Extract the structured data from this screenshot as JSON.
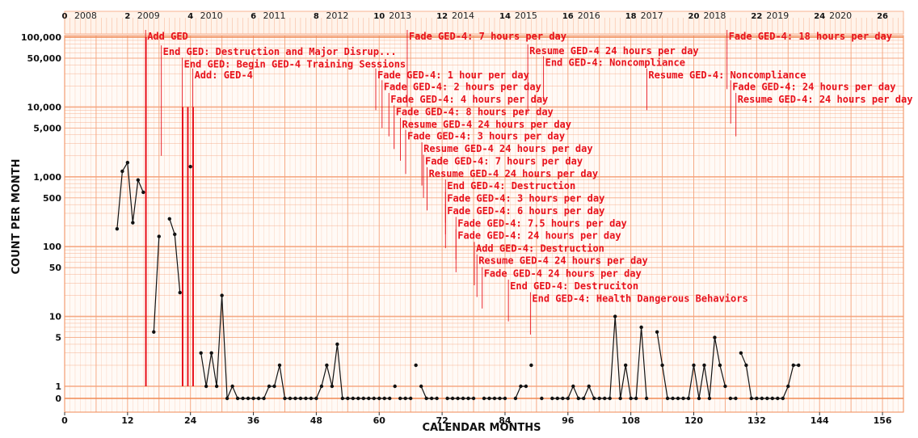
{
  "chart_data": {
    "type": "line",
    "title": "",
    "xlabel": "CALENDAR MONTHS",
    "ylabel": "COUNT PER MONTH",
    "xlim": [
      0,
      160
    ],
    "x_ticks": [
      0,
      12,
      24,
      36,
      48,
      60,
      72,
      84,
      96,
      108,
      120,
      132,
      144,
      156
    ],
    "y_scale": "log with zero baseline",
    "ylim": [
      0,
      100000
    ],
    "y_ticks": [
      {
        "value": 100000,
        "label": "100,000"
      },
      {
        "value": 50000,
        "label": "50,000"
      },
      {
        "value": 10000,
        "label": "10,000"
      },
      {
        "value": 5000,
        "label": "5,000"
      },
      {
        "value": 1000,
        "label": "1,000"
      },
      {
        "value": 500,
        "label": "500"
      },
      {
        "value": 100,
        "label": "100"
      },
      {
        "value": 50,
        "label": "50"
      },
      {
        "value": 10,
        "label": "10"
      },
      {
        "value": 5,
        "label": "5"
      },
      {
        "value": 1,
        "label": "1"
      },
      {
        "value": 0,
        "label": "0"
      }
    ],
    "top_ticks": [
      0,
      2,
      4,
      6,
      8,
      10,
      12,
      14,
      16,
      18,
      20,
      22,
      24,
      26
    ],
    "years": [
      "2008",
      "2009",
      "2010",
      "2011",
      "2012",
      "2013",
      "2014",
      "2015",
      "2016",
      "2017",
      "2018",
      "2019",
      "2020"
    ],
    "grid": true,
    "colors": {
      "grid": "#f5a27a",
      "annotation": "#e8121c",
      "series": "#111111",
      "major_grid": "#f08a55"
    },
    "segments": [
      [
        [
          10,
          180
        ],
        [
          11,
          1200
        ],
        [
          12,
          1600
        ],
        [
          13,
          220
        ],
        [
          14,
          900
        ],
        [
          15,
          600
        ]
      ],
      [
        [
          17,
          6
        ],
        [
          18,
          140
        ]
      ],
      [
        [
          20,
          250
        ],
        [
          21,
          150
        ],
        [
          22,
          22
        ]
      ],
      [
        [
          24,
          1400
        ]
      ],
      [
        [
          26,
          3
        ],
        [
          27,
          1
        ],
        [
          28,
          3
        ],
        [
          29,
          1
        ],
        [
          30,
          20
        ],
        [
          31,
          0
        ],
        [
          32,
          1
        ],
        [
          33,
          0
        ],
        [
          34,
          0
        ],
        [
          35,
          0
        ],
        [
          36,
          0
        ],
        [
          37,
          0
        ],
        [
          38,
          0
        ],
        [
          39,
          1
        ],
        [
          40,
          1
        ],
        [
          41,
          2
        ],
        [
          42,
          0
        ],
        [
          43,
          0
        ],
        [
          44,
          0
        ],
        [
          45,
          0
        ],
        [
          46,
          0
        ],
        [
          47,
          0
        ],
        [
          48,
          0
        ],
        [
          49,
          1
        ],
        [
          50,
          2
        ],
        [
          51,
          1
        ],
        [
          52,
          4
        ],
        [
          53,
          0
        ],
        [
          54,
          0
        ],
        [
          55,
          0
        ],
        [
          56,
          0
        ],
        [
          57,
          0
        ],
        [
          58,
          0
        ],
        [
          59,
          0
        ],
        [
          60,
          0
        ],
        [
          61,
          0
        ],
        [
          62,
          0
        ]
      ],
      [
        [
          63,
          1
        ]
      ],
      [
        [
          64,
          0
        ],
        [
          65,
          0
        ],
        [
          66,
          0
        ]
      ],
      [
        [
          67,
          2
        ]
      ],
      [
        [
          68,
          1
        ],
        [
          69,
          0
        ],
        [
          70,
          0
        ],
        [
          71,
          0
        ]
      ],
      [
        [
          73,
          0
        ],
        [
          74,
          0
        ],
        [
          75,
          0
        ],
        [
          76,
          0
        ],
        [
          77,
          0
        ],
        [
          78,
          0
        ]
      ],
      [
        [
          80,
          0
        ],
        [
          81,
          0
        ],
        [
          82,
          0
        ],
        [
          83,
          0
        ],
        [
          84,
          0
        ]
      ],
      [
        [
          86,
          0
        ],
        [
          87,
          1
        ],
        [
          88,
          1
        ]
      ],
      [
        [
          89,
          2
        ]
      ],
      [
        [
          91,
          0
        ]
      ],
      [
        [
          93,
          0
        ],
        [
          94,
          0
        ],
        [
          95,
          0
        ],
        [
          96,
          0
        ],
        [
          97,
          1
        ],
        [
          98,
          0
        ],
        [
          99,
          0
        ],
        [
          100,
          1
        ],
        [
          101,
          0
        ],
        [
          102,
          0
        ],
        [
          103,
          0
        ],
        [
          104,
          0
        ],
        [
          105,
          10
        ],
        [
          106,
          0
        ],
        [
          107,
          2
        ],
        [
          108,
          0
        ],
        [
          109,
          0
        ],
        [
          110,
          7
        ],
        [
          111,
          0
        ]
      ],
      [
        [
          113,
          6
        ],
        [
          114,
          2
        ],
        [
          115,
          0
        ],
        [
          116,
          0
        ],
        [
          117,
          0
        ],
        [
          118,
          0
        ],
        [
          119,
          0
        ],
        [
          120,
          2
        ],
        [
          121,
          0
        ],
        [
          122,
          2
        ],
        [
          123,
          0
        ],
        [
          124,
          5
        ],
        [
          125,
          2
        ],
        [
          126,
          1
        ]
      ],
      [
        [
          127,
          0
        ],
        [
          128,
          0
        ]
      ],
      [
        [
          129,
          3
        ],
        [
          130,
          2
        ],
        [
          131,
          0
        ],
        [
          132,
          0
        ],
        [
          133,
          0
        ],
        [
          134,
          0
        ],
        [
          135,
          0
        ],
        [
          136,
          0
        ],
        [
          137,
          0
        ],
        [
          138,
          1
        ],
        [
          139,
          2
        ],
        [
          140,
          2
        ]
      ]
    ],
    "phase_lines": [
      {
        "x": 15.5,
        "top": 100000
      },
      {
        "x": 22.5,
        "top": 10000
      },
      {
        "x": 23.5,
        "top": 10000
      },
      {
        "x": 24.5,
        "top": 10000
      }
    ],
    "annotations": [
      {
        "text": "Add GED",
        "x": 15.6,
        "y": 100000,
        "tick_to": 1
      },
      {
        "text": "End GED: Destruction and Major Disrup...",
        "x": 18.6,
        "y": 60000,
        "tick_to": 2000
      },
      {
        "text": "End GED: Begin GED-4 Training Sessions",
        "x": 22.6,
        "y": 40000,
        "tick_to": 1
      },
      {
        "text": "Add: GED-4",
        "x": 24.6,
        "y": 28000,
        "tick_to": 1
      },
      {
        "text": "Fade GED-4: 7 hours per day",
        "x": 65.5,
        "y": 100000,
        "tick_to": 10000
      },
      {
        "text": "Resume GED-4 24 hours per day",
        "x": 88.5,
        "y": 62000,
        "tick_to": 8000
      },
      {
        "text": "End GED-4: Noncompliance",
        "x": 91.5,
        "y": 42000,
        "tick_to": 12000
      },
      {
        "text": "Fade GED-4: 18 hours per day",
        "x": 126.5,
        "y": 100000,
        "tick_to": 18000
      },
      {
        "text": "Resume GED-4: Noncompliance",
        "x": 111.2,
        "y": 28000,
        "tick_to": 9000
      },
      {
        "text": "Fade GED-4: 1 hour per day",
        "x": 59.5,
        "y": 28000,
        "tick_to": 9000
      },
      {
        "text": "Fade GED-4: 2 hours per day",
        "x": 60.7,
        "y": 19000,
        "tick_to": 5000
      },
      {
        "text": "Fade GED-4: 24 hours per day",
        "x": 127.2,
        "y": 19000,
        "tick_to": 5800
      },
      {
        "text": "Fade GED-4: 4 hours per day",
        "x": 62.0,
        "y": 12500,
        "tick_to": 3800
      },
      {
        "text": "Resume GED-4: 24 hours per day",
        "x": 128.2,
        "y": 12500,
        "tick_to": 3800
      },
      {
        "text": "Fade GED-4: 8 hours per day",
        "x": 63.0,
        "y": 8300,
        "tick_to": 2500
      },
      {
        "text": "Resume GED-4 24 hours per day",
        "x": 64.2,
        "y": 5500,
        "tick_to": 1700
      },
      {
        "text": "Fade GED-4: 3 hours per day",
        "x": 65.2,
        "y": 3700,
        "tick_to": 1100
      },
      {
        "text": "Resume GED-4 24 hours per day",
        "x": 68.3,
        "y": 2450,
        "tick_to": 750
      },
      {
        "text": "Fade GED-4: 7 hours per day",
        "x": 68.6,
        "y": 1630,
        "tick_to": 500
      },
      {
        "text": "Resume GED-4 24 hours per day",
        "x": 69.3,
        "y": 1080,
        "tick_to": 330
      },
      {
        "text": "End GED-4: Destruction",
        "x": 72.8,
        "y": 720,
        "tick_to": 220
      },
      {
        "text": "Fade GED-4: 3 hours per day",
        "x": 72.8,
        "y": 475,
        "tick_to": 150
      },
      {
        "text": "Fade GED-4: 6 hours per day",
        "x": 72.8,
        "y": 315,
        "tick_to": 95
      },
      {
        "text": "Fade GED-4: 7.5 hours per day",
        "x": 74.8,
        "y": 210,
        "tick_to": 65
      },
      {
        "text": "Fade GED-4: 24 hours per day",
        "x": 74.8,
        "y": 140,
        "tick_to": 43
      },
      {
        "text": "Add GED-4: Destruction",
        "x": 78.3,
        "y": 92,
        "tick_to": 28
      },
      {
        "text": "Resume GED-4 24 hours per day",
        "x": 78.8,
        "y": 61,
        "tick_to": 19
      },
      {
        "text": "Fade GED-4 24 hours per day",
        "x": 79.8,
        "y": 40,
        "tick_to": 13
      },
      {
        "text": "End GED-4: Destruciton",
        "x": 84.8,
        "y": 26.5,
        "tick_to": 8.5
      },
      {
        "text": "End GED-4: Health Dangerous Behaviors",
        "x": 89.0,
        "y": 17.5,
        "tick_to": 5.5
      }
    ]
  }
}
